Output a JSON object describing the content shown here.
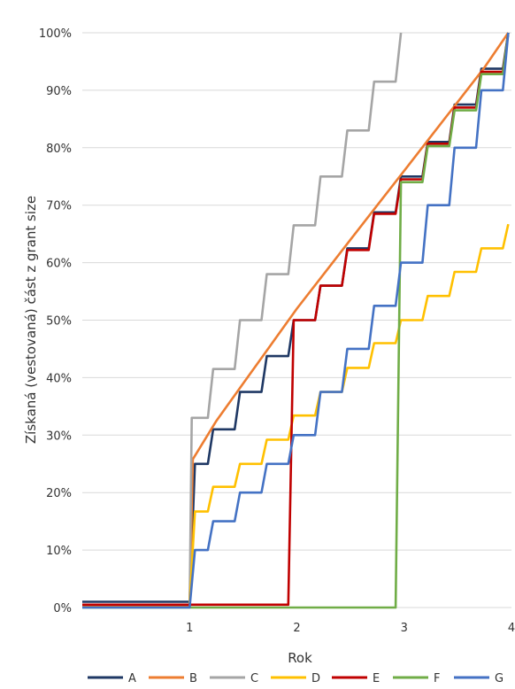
{
  "chart_data": {
    "type": "line",
    "title": "",
    "xlabel": "Rok",
    "ylabel": "Získaná (vestovaná) část z grant size",
    "xlim": [
      0,
      4
    ],
    "ylim": [
      0,
      100
    ],
    "x_ticks": [
      "1",
      "2",
      "3",
      "4"
    ],
    "y_ticks": [
      "0%",
      "10%",
      "20%",
      "30%",
      "40%",
      "50%",
      "60%",
      "70%",
      "80%",
      "90%",
      "100%"
    ],
    "grid": "horizontal",
    "legend_position": "bottom",
    "series": [
      {
        "name": "A",
        "color": "#1f3864",
        "points": [
          [
            0,
            1
          ],
          [
            1,
            1
          ],
          [
            1.05,
            25
          ],
          [
            1.17,
            25
          ],
          [
            1.22,
            31
          ],
          [
            1.42,
            31
          ],
          [
            1.47,
            37.5
          ],
          [
            1.67,
            37.5
          ],
          [
            1.72,
            43.75
          ],
          [
            1.92,
            43.75
          ],
          [
            1.97,
            50
          ],
          [
            2.17,
            50
          ],
          [
            2.22,
            56
          ],
          [
            2.42,
            56
          ],
          [
            2.47,
            62.5
          ],
          [
            2.67,
            62.5
          ],
          [
            2.72,
            68.75
          ],
          [
            2.92,
            68.75
          ],
          [
            2.97,
            75
          ],
          [
            3.17,
            75
          ],
          [
            3.22,
            81
          ],
          [
            3.42,
            81
          ],
          [
            3.47,
            87.5
          ],
          [
            3.67,
            87.5
          ],
          [
            3.72,
            93.75
          ],
          [
            3.92,
            93.75
          ],
          [
            3.97,
            100
          ]
        ]
      },
      {
        "name": "B",
        "color": "#ed7d31",
        "points": [
          [
            0,
            0.3
          ],
          [
            1,
            0.3
          ],
          [
            1.03,
            25.8
          ],
          [
            1.25,
            32.5
          ],
          [
            1.5,
            39
          ],
          [
            1.75,
            45.5
          ],
          [
            2,
            52
          ],
          [
            2.25,
            58
          ],
          [
            2.5,
            64
          ],
          [
            2.75,
            70
          ],
          [
            3,
            76
          ],
          [
            3.25,
            82
          ],
          [
            3.5,
            88
          ],
          [
            3.75,
            94
          ],
          [
            3.97,
            100
          ]
        ]
      },
      {
        "name": "C",
        "color": "#a5a5a5",
        "points": [
          [
            0,
            0.5
          ],
          [
            1,
            0.5
          ],
          [
            1.02,
            33
          ],
          [
            1.17,
            33
          ],
          [
            1.22,
            41.5
          ],
          [
            1.42,
            41.5
          ],
          [
            1.47,
            50
          ],
          [
            1.67,
            50
          ],
          [
            1.72,
            58
          ],
          [
            1.92,
            58
          ],
          [
            1.97,
            66.5
          ],
          [
            2.17,
            66.5
          ],
          [
            2.22,
            75
          ],
          [
            2.42,
            75
          ],
          [
            2.47,
            83
          ],
          [
            2.67,
            83
          ],
          [
            2.72,
            91.5
          ],
          [
            2.92,
            91.5
          ],
          [
            2.97,
            100
          ]
        ]
      },
      {
        "name": "D",
        "color": "#ffc000",
        "points": [
          [
            0,
            0.5
          ],
          [
            1,
            0.5
          ],
          [
            1.05,
            16.7
          ],
          [
            1.17,
            16.7
          ],
          [
            1.22,
            21
          ],
          [
            1.42,
            21
          ],
          [
            1.47,
            25
          ],
          [
            1.67,
            25
          ],
          [
            1.72,
            29.2
          ],
          [
            1.92,
            29.2
          ],
          [
            1.97,
            33.4
          ],
          [
            2.17,
            33.4
          ],
          [
            2.22,
            37.5
          ],
          [
            2.42,
            37.5
          ],
          [
            2.47,
            41.7
          ],
          [
            2.67,
            41.7
          ],
          [
            2.72,
            46
          ],
          [
            2.92,
            46
          ],
          [
            2.97,
            50
          ],
          [
            3.17,
            50
          ],
          [
            3.22,
            54.2
          ],
          [
            3.42,
            54.2
          ],
          [
            3.47,
            58.4
          ],
          [
            3.67,
            58.4
          ],
          [
            3.72,
            62.5
          ],
          [
            3.92,
            62.5
          ],
          [
            3.97,
            66.7
          ]
        ]
      },
      {
        "name": "E",
        "color": "#c00000",
        "points": [
          [
            0,
            0.5
          ],
          [
            1,
            0.5
          ],
          [
            1.92,
            0.5
          ],
          [
            1.97,
            50
          ],
          [
            2.17,
            50
          ],
          [
            2.22,
            56
          ],
          [
            2.42,
            56
          ],
          [
            2.47,
            62.2
          ],
          [
            2.67,
            62.2
          ],
          [
            2.72,
            68.5
          ],
          [
            2.92,
            68.5
          ],
          [
            2.97,
            74.5
          ],
          [
            3.17,
            74.5
          ],
          [
            3.22,
            80.7
          ],
          [
            3.42,
            80.7
          ],
          [
            3.47,
            87
          ],
          [
            3.67,
            87
          ],
          [
            3.72,
            93.2
          ],
          [
            3.92,
            93.2
          ],
          [
            3.97,
            100
          ]
        ]
      },
      {
        "name": "F",
        "color": "#70ad47",
        "points": [
          [
            0,
            0
          ],
          [
            1,
            0
          ],
          [
            2.92,
            0
          ],
          [
            2.97,
            74
          ],
          [
            3.17,
            74
          ],
          [
            3.22,
            80.3
          ],
          [
            3.42,
            80.3
          ],
          [
            3.47,
            86.5
          ],
          [
            3.67,
            86.5
          ],
          [
            3.72,
            92.8
          ],
          [
            3.92,
            92.8
          ],
          [
            3.97,
            100
          ]
        ]
      },
      {
        "name": "G",
        "color": "#4472c4",
        "points": [
          [
            0,
            0
          ],
          [
            1,
            0
          ],
          [
            1.05,
            10
          ],
          [
            1.17,
            10
          ],
          [
            1.22,
            15
          ],
          [
            1.42,
            15
          ],
          [
            1.47,
            20
          ],
          [
            1.67,
            20
          ],
          [
            1.72,
            25
          ],
          [
            1.92,
            25
          ],
          [
            1.97,
            30
          ],
          [
            2.17,
            30
          ],
          [
            2.22,
            37.5
          ],
          [
            2.42,
            37.5
          ],
          [
            2.47,
            45
          ],
          [
            2.67,
            45
          ],
          [
            2.72,
            52.5
          ],
          [
            2.92,
            52.5
          ],
          [
            2.97,
            60
          ],
          [
            3.17,
            60
          ],
          [
            3.22,
            70
          ],
          [
            3.42,
            70
          ],
          [
            3.47,
            80
          ],
          [
            3.67,
            80
          ],
          [
            3.72,
            90
          ],
          [
            3.92,
            90
          ],
          [
            3.97,
            100
          ]
        ]
      }
    ]
  }
}
